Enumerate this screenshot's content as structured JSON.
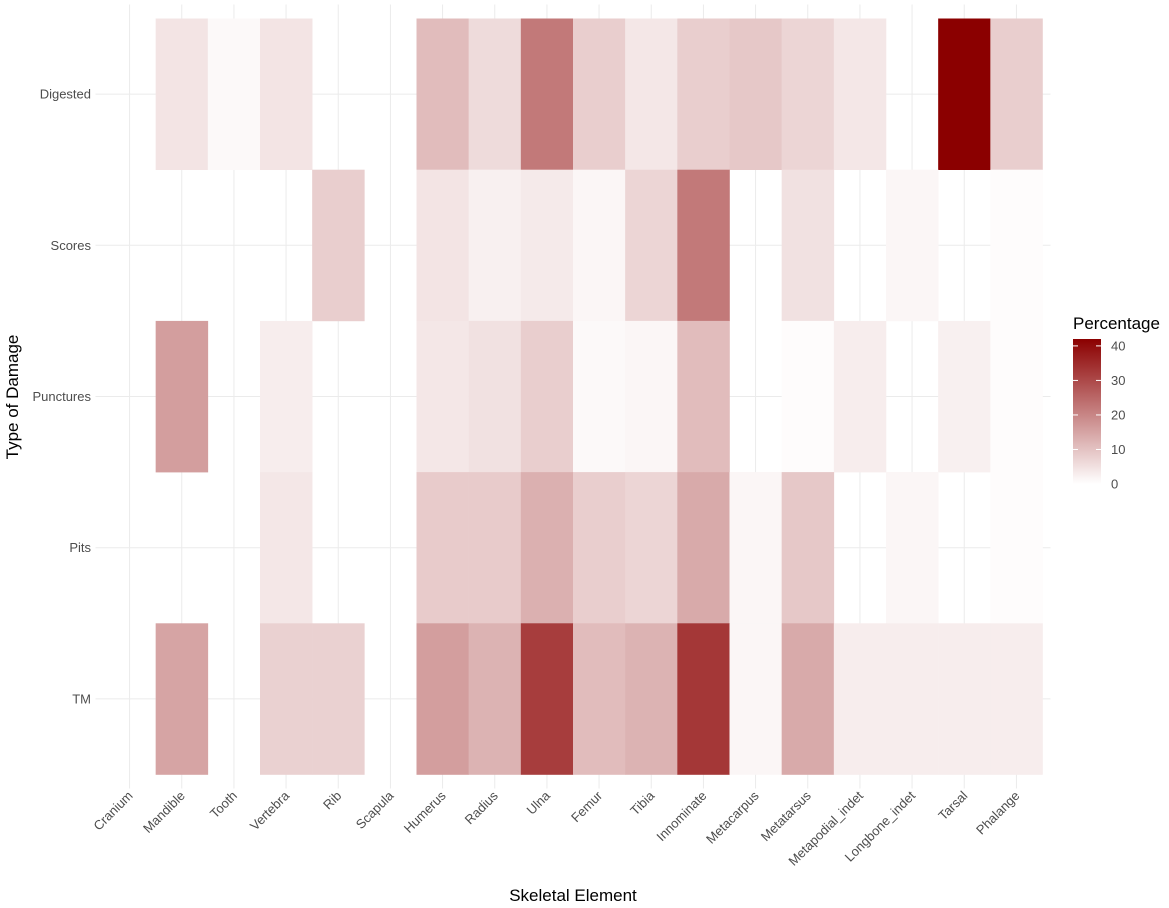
{
  "chart_data": {
    "type": "heatmap",
    "title": "",
    "xlabel": "Skeletal Element",
    "ylabel": "Type of Damage",
    "x_categories": [
      "Cranium",
      "Mandible",
      "Tooth",
      "Vertebra",
      "Rib",
      "Scapula",
      "Humerus",
      "Radius",
      "Ulna",
      "Femur",
      "Tibia",
      "Innominate",
      "Metacarpus",
      "Metatarsus",
      "Metapodial_indet",
      "Longbone_indet",
      "Tarsal",
      "Phalange"
    ],
    "y_categories": [
      "Digested",
      "Scores",
      "Punctures",
      "Pits",
      "TM"
    ],
    "values": [
      [
        null,
        4.5,
        1,
        4.5,
        null,
        null,
        11,
        6,
        22,
        8,
        4,
        8,
        9,
        7,
        4,
        null,
        42,
        8
      ],
      [
        null,
        null,
        null,
        null,
        8,
        null,
        4.5,
        2.5,
        3.5,
        1.5,
        7,
        22,
        null,
        5,
        null,
        1.5,
        null,
        0.5
      ],
      [
        null,
        16,
        null,
        3,
        null,
        null,
        4,
        5,
        8,
        1,
        1.5,
        11,
        null,
        0.5,
        3,
        null,
        2.5,
        0.5
      ],
      [
        null,
        null,
        null,
        4,
        null,
        null,
        8.5,
        8.5,
        13,
        8,
        7,
        14,
        1.5,
        9,
        null,
        1.5,
        null,
        0.5
      ],
      [
        null,
        15,
        null,
        7.5,
        7.5,
        null,
        16,
        12.5,
        32,
        11,
        12.5,
        33,
        1.5,
        14,
        3,
        3,
        3,
        3
      ]
    ],
    "legend": {
      "title": "Percentage",
      "ticks": [
        0,
        10,
        20,
        30,
        40
      ],
      "range": [
        0,
        42
      ],
      "low_color": "#ffffff",
      "high_color": "#8b0000",
      "position": "right"
    },
    "grid": true
  }
}
